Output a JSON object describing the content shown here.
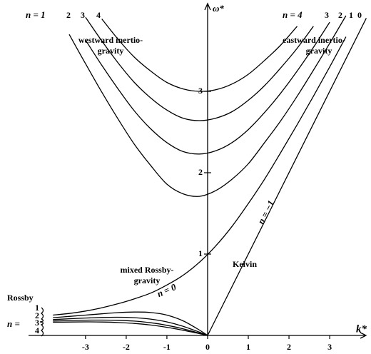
{
  "chart_data": {
    "type": "line",
    "x_label": "k*",
    "y_label": "ω*",
    "xlim": [
      -4.4,
      3.84
    ],
    "ylim": [
      0,
      3.95
    ],
    "xticks": [
      -3,
      -2,
      -1,
      0,
      1,
      2,
      3
    ],
    "yticks": [
      1,
      2,
      3
    ],
    "color": "#000000",
    "series": [
      {
        "x": [
          -3.8,
          -3.4,
          -3.0,
          -2.6,
          -2.2,
          -1.8,
          -1.4,
          -1.0,
          -0.6,
          -0.2,
          0.2,
          0.6,
          1.0,
          1.4,
          1.8,
          2.2,
          2.6,
          3.0,
          3.4,
          3.8
        ],
        "values": [
          null,
          3.7,
          3.34,
          2.99,
          2.66,
          2.35,
          2.09,
          1.86,
          1.74,
          1.71,
          1.78,
          1.92,
          2.11,
          2.37,
          2.64,
          2.94,
          3.26,
          3.59,
          3.93,
          null
        ]
      },
      {
        "x": [
          -3.8,
          -3.4,
          -3.0,
          -2.6,
          -2.2,
          -1.8,
          -1.4,
          -1.0,
          -0.6,
          -0.2,
          0.2,
          0.6,
          1.0,
          1.4,
          1.8,
          2.2,
          2.6,
          3.0,
          3.4,
          3.8
        ],
        "values": [
          null,
          null,
          3.63,
          3.32,
          3.03,
          2.76,
          2.54,
          2.37,
          2.26,
          2.23,
          2.27,
          2.37,
          2.53,
          2.74,
          2.98,
          3.25,
          3.54,
          3.85,
          null,
          null
        ]
      },
      {
        "x": [
          -3.8,
          -3.4,
          -3.0,
          -2.6,
          -2.2,
          -1.8,
          -1.4,
          -1.0,
          -0.6,
          -0.2,
          0.2,
          0.6,
          1.0,
          1.4,
          1.8,
          2.2,
          2.6,
          3.0,
          3.4,
          3.8
        ],
        "values": [
          null,
          null,
          3.91,
          3.62,
          3.35,
          3.11,
          2.92,
          2.77,
          2.67,
          2.64,
          2.67,
          2.75,
          2.89,
          3.07,
          3.29,
          3.53,
          3.8,
          null,
          null,
          null
        ]
      },
      {
        "x": [
          -3.8,
          -3.4,
          -3.0,
          -2.6,
          -2.2,
          -1.8,
          -1.4,
          -1.0,
          -0.6,
          -0.2,
          0.2,
          0.6,
          1.0,
          1.4,
          1.8,
          2.2,
          2.6,
          3.0,
          3.4,
          3.8
        ],
        "values": [
          null,
          null,
          null,
          3.89,
          3.64,
          3.42,
          3.25,
          3.11,
          3.03,
          3.0,
          3.02,
          3.09,
          3.21,
          3.38,
          3.57,
          3.8,
          null,
          null,
          null,
          null
        ]
      },
      {
        "x": [
          -3.8,
          -3.4,
          -3.0,
          -2.6,
          -2.2,
          -1.8,
          -1.4,
          -1.0,
          -0.6,
          -0.2,
          0.2,
          0.6,
          1.0,
          1.4,
          1.8,
          2.2,
          2.6,
          3.0,
          3.4,
          3.8
        ],
        "values": [
          0.25,
          0.27,
          0.3,
          0.34,
          0.39,
          0.45,
          0.52,
          0.62,
          0.74,
          0.9,
          1.1,
          1.34,
          1.62,
          1.92,
          2.25,
          2.59,
          2.94,
          3.3,
          3.67,
          null
        ]
      },
      {
        "x": [
          0,
          3.9
        ],
        "values": [
          0,
          3.9
        ]
      },
      {
        "x": [
          -3.8,
          -3.4,
          -3.0,
          -2.6,
          -2.2,
          -1.8,
          -1.4,
          -1.0,
          -0.6,
          -0.2,
          0
        ],
        "values": [
          0.218,
          0.234,
          0.25,
          0.266,
          0.281,
          0.288,
          0.282,
          0.25,
          0.179,
          0.066,
          0
        ]
      },
      {
        "x": [
          -3.8,
          -3.4,
          -3.0,
          -2.6,
          -2.2,
          -1.8,
          -1.4,
          -1.0,
          -0.6,
          -0.2,
          0
        ],
        "values": [
          0.195,
          0.205,
          0.214,
          0.221,
          0.224,
          0.218,
          0.201,
          0.167,
          0.112,
          0.04,
          0
        ]
      },
      {
        "x": [
          -3.8,
          -3.4,
          -3.0,
          -2.6,
          -2.2,
          -1.8,
          -1.4,
          -1.0,
          -0.6,
          -0.2,
          0
        ],
        "values": [
          0.177,
          0.183,
          0.188,
          0.189,
          0.186,
          0.176,
          0.156,
          0.125,
          0.082,
          0.028,
          0
        ]
      },
      {
        "x": [
          -3.8,
          -3.4,
          -3.0,
          -2.6,
          -2.2,
          -1.8,
          -1.4,
          -1.0,
          -0.6,
          -0.2,
          0
        ],
        "values": [
          0.162,
          0.165,
          0.167,
          0.165,
          0.159,
          0.147,
          0.128,
          0.1,
          0.064,
          0.022,
          0
        ]
      }
    ],
    "annotations": [
      "n = 1",
      "2",
      "3",
      "4",
      "n = 4",
      "3",
      "2",
      "1",
      "0",
      "westward inertio-",
      "gravity",
      "eastward inertio-",
      "gravity",
      "mixed Rossby-",
      "gravity",
      "n = 0",
      "Kelvin",
      "n = −1",
      "Rossby",
      "n =",
      "1",
      "2",
      "3",
      "4"
    ]
  }
}
